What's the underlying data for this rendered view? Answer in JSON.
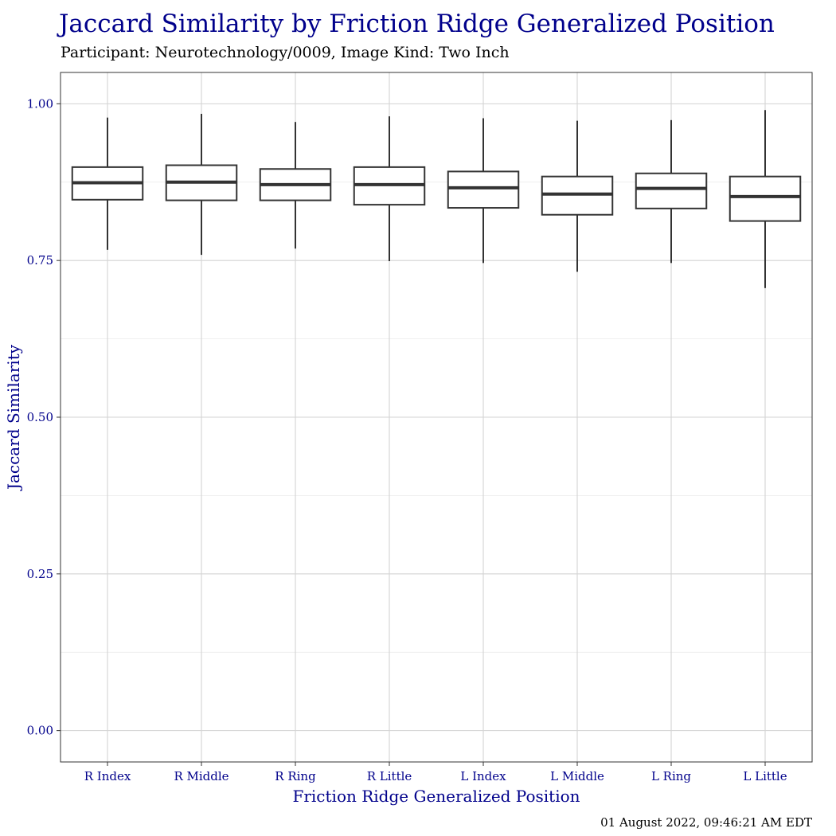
{
  "chart_data": {
    "type": "boxplot",
    "title": "Jaccard Similarity by Friction Ridge Generalized Position",
    "subtitle": "Participant: Neurotechnology/0009, Image Kind: Two Inch",
    "xlabel": "Friction Ridge Generalized Position",
    "ylabel": "Jaccard Similarity",
    "caption": "01 August 2022, 09:46:21 AM EDT",
    "ylim": [
      -0.05,
      1.05
    ],
    "yticks": [
      0.0,
      0.25,
      0.5,
      0.75,
      1.0
    ],
    "ytick_labels": [
      "0.00",
      "0.25",
      "0.50",
      "0.75",
      "1.00"
    ],
    "grid": true,
    "categories": [
      "R Index",
      "R Middle",
      "R Ring",
      "R Little",
      "L Index",
      "L Middle",
      "L Ring",
      "L Little"
    ],
    "boxes": [
      {
        "category": "R Index",
        "min": 0.767,
        "q1": 0.847,
        "median": 0.874,
        "q3": 0.899,
        "max": 0.978
      },
      {
        "category": "R Middle",
        "min": 0.759,
        "q1": 0.846,
        "median": 0.875,
        "q3": 0.902,
        "max": 0.984
      },
      {
        "category": "R Ring",
        "min": 0.769,
        "q1": 0.846,
        "median": 0.871,
        "q3": 0.896,
        "max": 0.971
      },
      {
        "category": "R Little",
        "min": 0.749,
        "q1": 0.839,
        "median": 0.871,
        "q3": 0.899,
        "max": 0.98
      },
      {
        "category": "L Index",
        "min": 0.746,
        "q1": 0.834,
        "median": 0.866,
        "q3": 0.892,
        "max": 0.977
      },
      {
        "category": "L Middle",
        "min": 0.732,
        "q1": 0.823,
        "median": 0.856,
        "q3": 0.884,
        "max": 0.973
      },
      {
        "category": "L Ring",
        "min": 0.746,
        "q1": 0.833,
        "median": 0.865,
        "q3": 0.889,
        "max": 0.974
      },
      {
        "category": "L Little",
        "min": 0.706,
        "q1": 0.813,
        "median": 0.852,
        "q3": 0.884,
        "max": 0.99
      }
    ],
    "colors": {
      "title": "#00008b",
      "axis_text": "#00008b",
      "box_line": "#333333",
      "grid_major": "#d3d3d3",
      "grid_minor": "#ebebeb"
    }
  }
}
